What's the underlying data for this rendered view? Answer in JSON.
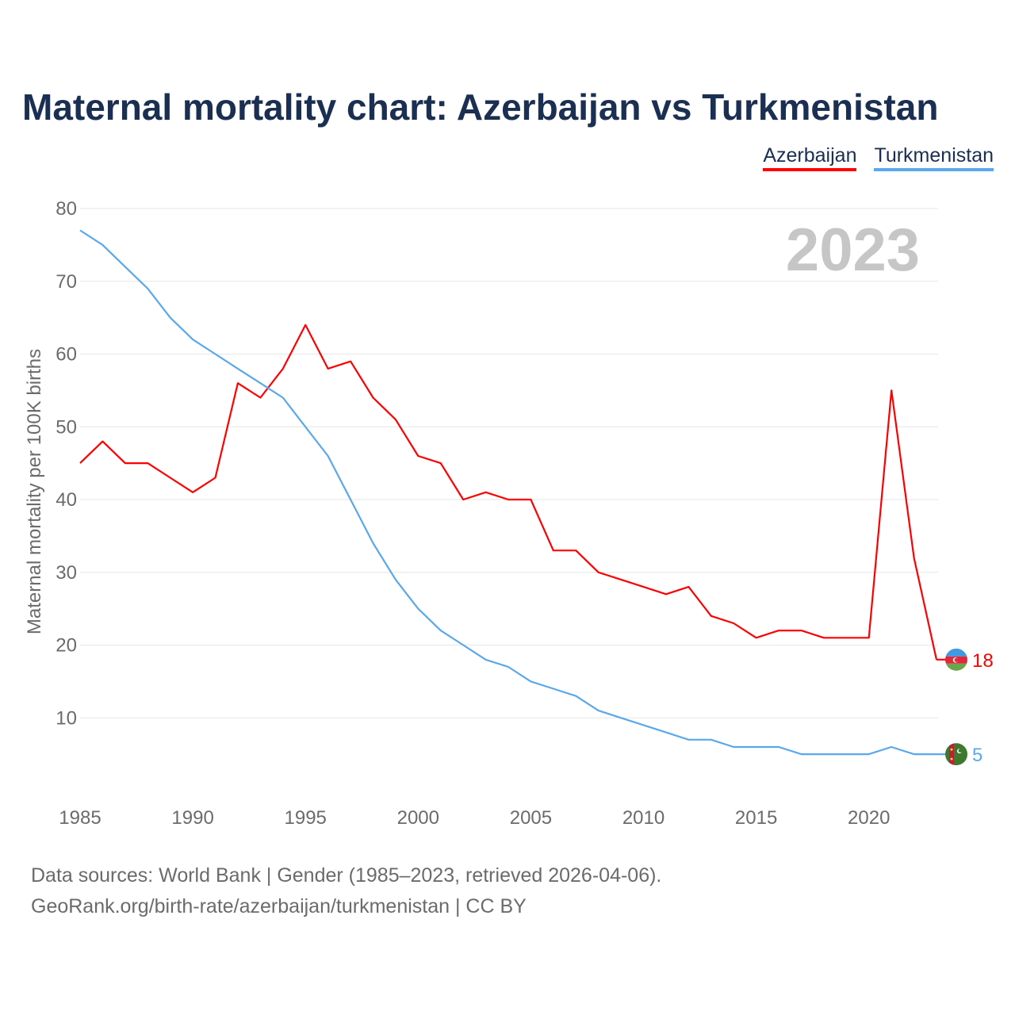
{
  "header": {
    "title": "Maternal mortality chart: Azerbaijan vs Turkmenistan"
  },
  "legend": {
    "azerbaijan": "Azerbaijan",
    "turkmenistan": "Turkmenistan"
  },
  "colors": {
    "azerbaijan": "#ff0000",
    "turkmenistan": "#5aa8ec",
    "title": "#1b2f52",
    "axis_text": "#6b6b6b",
    "grid": "#e6e6e6",
    "year_watermark": "#c6c6c6"
  },
  "chart_data": {
    "type": "line",
    "title": "Maternal mortality chart: Azerbaijan vs Turkmenistan",
    "ylabel": "Maternal mortality per 100K births",
    "xlabel": "",
    "year_label": "2023",
    "xlim": [
      1985,
      2023
    ],
    "ylim": [
      0,
      80
    ],
    "x_ticks": [
      1985,
      1990,
      1995,
      2000,
      2005,
      2010,
      2015,
      2020
    ],
    "y_ticks": [
      10,
      20,
      30,
      40,
      50,
      60,
      70,
      80
    ],
    "x": [
      1985,
      1986,
      1987,
      1988,
      1989,
      1990,
      1991,
      1992,
      1993,
      1994,
      1995,
      1996,
      1997,
      1998,
      1999,
      2000,
      2001,
      2002,
      2003,
      2004,
      2005,
      2006,
      2007,
      2008,
      2009,
      2010,
      2011,
      2012,
      2013,
      2014,
      2015,
      2016,
      2017,
      2018,
      2019,
      2020,
      2021,
      2022,
      2023
    ],
    "series": [
      {
        "name": "Azerbaijan",
        "key": "azerbaijan",
        "end_label": "18",
        "values": [
          45,
          48,
          45,
          45,
          43,
          41,
          43,
          56,
          54,
          58,
          64,
          58,
          59,
          54,
          51,
          46,
          45,
          40,
          41,
          40,
          40,
          33,
          33,
          30,
          29,
          28,
          27,
          28,
          24,
          23,
          21,
          22,
          22,
          21,
          21,
          21,
          55,
          32,
          18
        ]
      },
      {
        "name": "Turkmenistan",
        "key": "turkmenistan",
        "end_label": "5",
        "values": [
          77,
          75,
          72,
          69,
          65,
          62,
          60,
          58,
          56,
          54,
          50,
          46,
          40,
          34,
          29,
          25,
          22,
          20,
          18,
          17,
          15,
          14,
          13,
          11,
          10,
          9,
          8,
          7,
          7,
          6,
          6,
          6,
          5,
          5,
          5,
          5,
          6,
          5,
          5
        ]
      }
    ],
    "grid": true,
    "legend_position": "top-right"
  },
  "footer": {
    "line1": "Data sources: World Bank | Gender (1985–2023, retrieved 2026-04-06).",
    "line2": "GeoRank.org/birth-rate/azerbaijan/turkmenistan | CC BY"
  }
}
